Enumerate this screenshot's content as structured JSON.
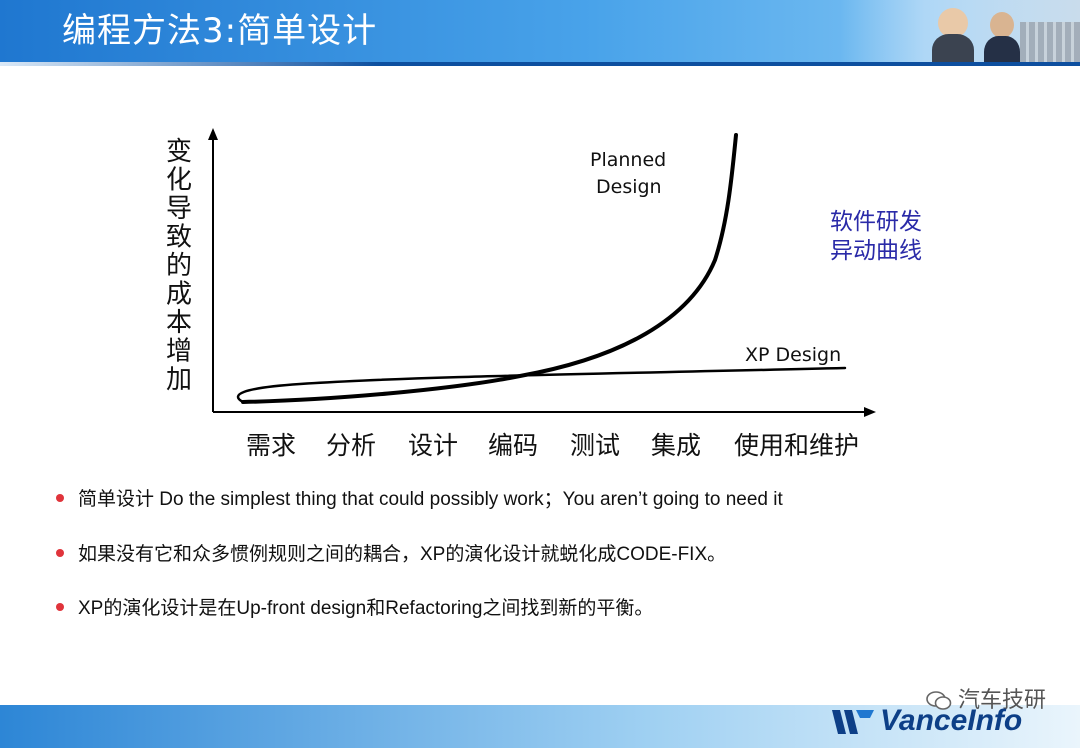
{
  "header": {
    "title": "编程方法3:简单设计"
  },
  "chart_data": {
    "type": "line",
    "ylabel": "变化导致的成本增加",
    "categories": [
      "需求",
      "分析",
      "设计",
      "编码",
      "测试",
      "集成",
      "使用和维护"
    ],
    "series": [
      {
        "name": "Planned Design",
        "label_lines": [
          "Planned",
          "Design"
        ]
      },
      {
        "name": "XP Design"
      }
    ],
    "note_lines": [
      "软件研发",
      "异动曲线"
    ]
  },
  "bullets": [
    {
      "text": "简单设计  Do the simplest thing that could possibly work；You aren’t going to need it"
    },
    {
      "text": "如果没有它和众多惯例规则之间的耦合，XP的演化设计就蜕化成CODE-FIX。"
    },
    {
      "text": "XP的演化设计是在Up-front design和Refactoring之间找到新的平衡。"
    }
  ],
  "footer": {
    "watermark": "汽车技研",
    "logo": "VanceInfo"
  },
  "colors": {
    "header": "#1f77d0",
    "bullet": "#e0343b",
    "note": "#2a2aa8",
    "logo": "#0d3f87"
  }
}
